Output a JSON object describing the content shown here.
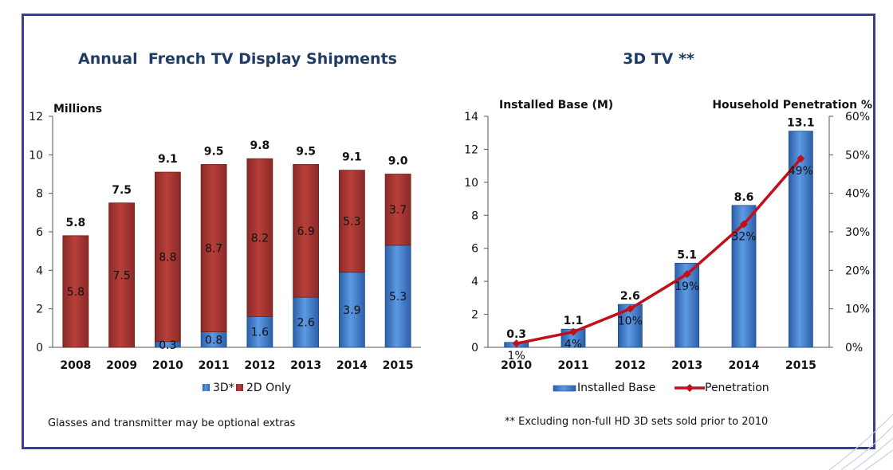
{
  "colors": {
    "frame": "#3b3c97",
    "bar_red": "#b23a36",
    "bar_red_dark": "#7d2422",
    "bar_blue": "#3f7fd0",
    "bar_blue_dark": "#1f4e8e",
    "line_red": "#c1101a",
    "title": "#1f3c66"
  },
  "chart_data": [
    {
      "type": "bar",
      "stacked": true,
      "title": "Annual  French TV Display Shipments",
      "ylabel": "Millions",
      "ylim": [
        0,
        12
      ],
      "yticks": [
        "0",
        "2",
        "4",
        "6",
        "8",
        "10",
        "12"
      ],
      "categories": [
        "2008",
        "2009",
        "2010",
        "2011",
        "2012",
        "2013",
        "2014",
        "2015"
      ],
      "series": [
        {
          "name": "3D*",
          "values": [
            0,
            0,
            0.3,
            0.8,
            1.6,
            2.6,
            3.9,
            5.3
          ],
          "labels": [
            "",
            "",
            "0.3",
            "0.8",
            "1.6",
            "2.6",
            "3.9",
            "5.3"
          ]
        },
        {
          "name": "2D Only",
          "values": [
            5.8,
            7.5,
            8.8,
            8.7,
            8.2,
            6.9,
            5.3,
            3.7
          ],
          "labels": [
            "5.8",
            "7.5",
            "8.8",
            "8.7",
            "8.2",
            "6.9",
            "5.3",
            "3.7"
          ]
        }
      ],
      "totals": [
        "5.8",
        "7.5",
        "9.1",
        "9.5",
        "9.8",
        "9.5",
        "9.1",
        "9.0"
      ],
      "legend_position": "bottom",
      "note": "Glasses and transmitter may be optional extras"
    },
    {
      "type": "bar",
      "title": "3D TV **",
      "ylabel": "Installed Base (M)",
      "y2label": "Household Penetration %",
      "ylim": [
        0,
        14
      ],
      "y2lim": [
        0,
        60
      ],
      "yticks": [
        "0",
        "2",
        "4",
        "6",
        "8",
        "10",
        "12",
        "14"
      ],
      "y2ticks": [
        "0%",
        "10%",
        "20%",
        "30%",
        "40%",
        "50%",
        "60%"
      ],
      "categories": [
        "2010",
        "2011",
        "2012",
        "2013",
        "2014",
        "2015"
      ],
      "series": [
        {
          "name": "Installed Base",
          "type": "bar",
          "values": [
            0.3,
            1.1,
            2.6,
            5.1,
            8.6,
            13.1
          ],
          "labels": [
            "0.3",
            "1.1",
            "2.6",
            "5.1",
            "8.6",
            "13.1"
          ]
        },
        {
          "name": "Penetration",
          "type": "line",
          "axis": "right",
          "values": [
            1,
            4,
            10,
            19,
            32,
            49
          ],
          "labels": [
            "1%",
            "4%",
            "10%",
            "19%",
            "32%",
            "49%"
          ]
        }
      ],
      "legend_position": "bottom",
      "note": "** Excluding non-full HD 3D sets sold prior to 2010"
    }
  ]
}
